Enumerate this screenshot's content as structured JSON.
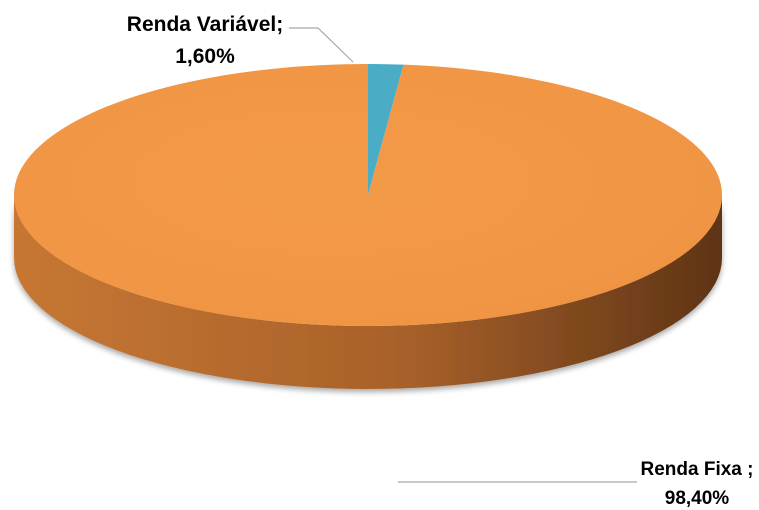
{
  "chart_data": {
    "type": "pie",
    "title": "",
    "slices": [
      {
        "name": "Renda Fixa",
        "label_name": "Renda Fixa ;",
        "label_value": "98,40%",
        "value": 98.4,
        "color": "#F09543"
      },
      {
        "name": "Renda Variável",
        "label_name": "Renda Variável;",
        "label_value": "1,60%",
        "value": 1.6,
        "color": "#4BACC6"
      }
    ],
    "style": "3d",
    "legend": "none",
    "leader_line_color": "#A6A6A6"
  }
}
